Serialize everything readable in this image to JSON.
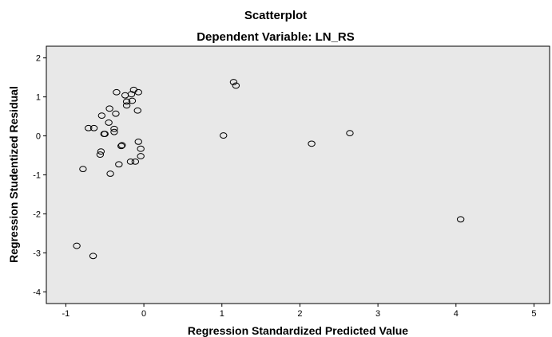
{
  "chart_data": {
    "type": "scatter",
    "title": "Scatterplot",
    "subtitle": "Dependent Variable: LN_RS",
    "xlabel": "Regression Standardized Predicted Value",
    "ylabel": "Regression Studentized Residual",
    "xlim": [
      -1.25,
      5.2
    ],
    "ylim": [
      -4.3,
      2.3
    ],
    "xticks": [
      -1,
      0,
      1,
      2,
      3,
      4,
      5
    ],
    "yticks": [
      2,
      1,
      0,
      -1,
      -2,
      -3,
      -4
    ],
    "grid": false,
    "plot_background": "#e8e8e8",
    "marker_color": "#000000",
    "points": [
      {
        "x": -0.86,
        "y": -2.82
      },
      {
        "x": -0.65,
        "y": -3.08
      },
      {
        "x": -0.78,
        "y": -0.85
      },
      {
        "x": -0.71,
        "y": 0.2
      },
      {
        "x": -0.64,
        "y": 0.2
      },
      {
        "x": -0.56,
        "y": -0.48
      },
      {
        "x": -0.55,
        "y": -0.4
      },
      {
        "x": -0.54,
        "y": 0.52
      },
      {
        "x": -0.51,
        "y": 0.05
      },
      {
        "x": -0.5,
        "y": 0.05
      },
      {
        "x": -0.45,
        "y": 0.34
      },
      {
        "x": -0.44,
        "y": 0.7
      },
      {
        "x": -0.43,
        "y": -0.97
      },
      {
        "x": -0.38,
        "y": 0.1
      },
      {
        "x": -0.38,
        "y": 0.18
      },
      {
        "x": -0.36,
        "y": 0.57
      },
      {
        "x": -0.35,
        "y": 1.12
      },
      {
        "x": -0.32,
        "y": -0.73
      },
      {
        "x": -0.29,
        "y": -0.26
      },
      {
        "x": -0.28,
        "y": -0.24
      },
      {
        "x": -0.24,
        "y": 1.04
      },
      {
        "x": -0.22,
        "y": 0.88
      },
      {
        "x": -0.22,
        "y": 0.78
      },
      {
        "x": -0.17,
        "y": -0.66
      },
      {
        "x": -0.16,
        "y": 1.07
      },
      {
        "x": -0.15,
        "y": 0.9
      },
      {
        "x": -0.13,
        "y": 1.18
      },
      {
        "x": -0.11,
        "y": -0.66
      },
      {
        "x": -0.08,
        "y": 0.65
      },
      {
        "x": -0.07,
        "y": 1.12
      },
      {
        "x": -0.07,
        "y": -0.15
      },
      {
        "x": -0.04,
        "y": -0.33
      },
      {
        "x": -0.04,
        "y": -0.52
      },
      {
        "x": 1.02,
        "y": 0.01
      },
      {
        "x": 1.15,
        "y": 1.38
      },
      {
        "x": 1.18,
        "y": 1.29
      },
      {
        "x": 2.15,
        "y": -0.2
      },
      {
        "x": 2.64,
        "y": 0.07
      },
      {
        "x": 4.06,
        "y": -2.14
      }
    ]
  }
}
